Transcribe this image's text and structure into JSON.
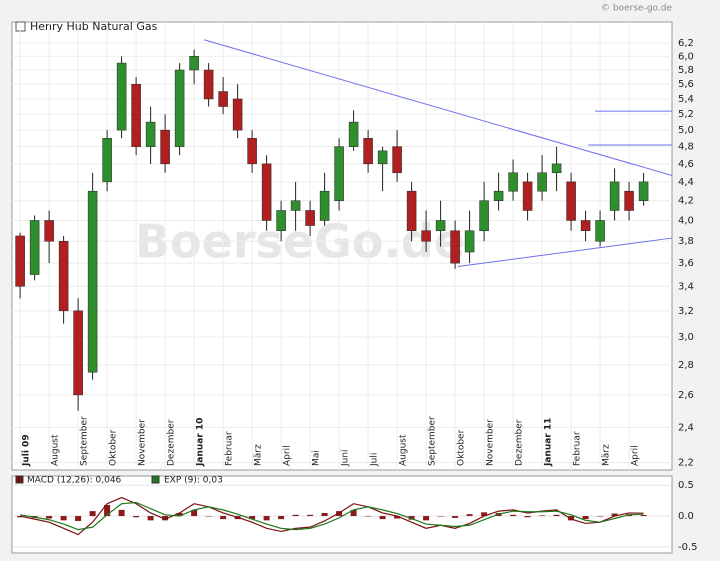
{
  "copyright": "© boerse-go.de",
  "watermark": "BoerseGo.de",
  "chart_data": [
    {
      "type": "candlestick",
      "log": true,
      "grid": true,
      "ylim": [
        2.16,
        6.53
      ],
      "yticks": [
        {
          "value": 2.2,
          "label": "2,2"
        },
        {
          "value": 2.4,
          "label": "2,4"
        },
        {
          "value": 2.6,
          "label": "2,6"
        },
        {
          "value": 2.8,
          "label": "2,8"
        },
        {
          "value": 3.0,
          "label": "3,0"
        },
        {
          "value": 3.2,
          "label": "3,2"
        },
        {
          "value": 3.4,
          "label": "3,4"
        },
        {
          "value": 3.6,
          "label": "3,6"
        },
        {
          "value": 3.8,
          "label": "3,8"
        },
        {
          "value": 4.0,
          "label": "4,0"
        },
        {
          "value": 4.2,
          "label": "4,2"
        },
        {
          "value": 4.4,
          "label": "4,4"
        },
        {
          "value": 4.6,
          "label": "4,6"
        },
        {
          "value": 4.8,
          "label": "4,8"
        },
        {
          "value": 5.0,
          "label": "5,0"
        },
        {
          "value": 5.2,
          "label": "5,2"
        },
        {
          "value": 5.4,
          "label": "5,4"
        },
        {
          "value": 5.6,
          "label": "5,6"
        },
        {
          "value": 5.8,
          "label": "5,8"
        },
        {
          "value": 6.0,
          "label": "6,0"
        },
        {
          "value": 6.2,
          "label": "6,2"
        }
      ],
      "xlim": [
        -0.28,
        22.48
      ],
      "xticks": [
        {
          "value": 0,
          "label": "Juli 09"
        },
        {
          "value": 1,
          "label": "August"
        },
        {
          "value": 2,
          "label": "September"
        },
        {
          "value": 3,
          "label": "Oktober"
        },
        {
          "value": 4,
          "label": "November"
        },
        {
          "value": 5,
          "label": "Dezember"
        },
        {
          "value": 6,
          "label": "Januar 10"
        },
        {
          "value": 7,
          "label": "Februar"
        },
        {
          "value": 8,
          "label": "März"
        },
        {
          "value": 9,
          "label": "April"
        },
        {
          "value": 10,
          "label": "Mai"
        },
        {
          "value": 11,
          "label": "Juni"
        },
        {
          "value": 12,
          "label": "Juli"
        },
        {
          "value": 13,
          "label": "August"
        },
        {
          "value": 14,
          "label": "September"
        },
        {
          "value": 15,
          "label": "Oktober"
        },
        {
          "value": 16,
          "label": "November"
        },
        {
          "value": 17,
          "label": "Dezember"
        },
        {
          "value": 18,
          "label": "Januar 11"
        },
        {
          "value": 19,
          "label": "Februar"
        },
        {
          "value": 20,
          "label": "März"
        },
        {
          "value": 21,
          "label": "April"
        }
      ],
      "series": [
        {
          "name": "Henry Hub Natural Gas",
          "up_color": "#2f8f2f",
          "down_color": "#b02020",
          "x": [
            0,
            0.5,
            1,
            1.5,
            2,
            2.5,
            3,
            3.5,
            4,
            4.5,
            5,
            5.5,
            6,
            6.5,
            7,
            7.5,
            8,
            8.5,
            9,
            9.5,
            10,
            10.5,
            11,
            11.5,
            12,
            12.5,
            13,
            13.5,
            14,
            14.5,
            15,
            15.5,
            16,
            16.5,
            17,
            17.5,
            18,
            18.5,
            19,
            19.5,
            20,
            20.5,
            21,
            21.5
          ],
          "open": [
            3.85,
            3.5,
            4.0,
            3.8,
            3.2,
            2.75,
            4.4,
            5.0,
            5.6,
            4.8,
            5.0,
            4.8,
            5.8,
            5.8,
            5.5,
            5.4,
            4.9,
            4.6,
            3.9,
            4.1,
            4.1,
            4.0,
            4.2,
            4.8,
            4.9,
            4.6,
            4.8,
            4.3,
            3.9,
            3.9,
            3.9,
            3.7,
            3.9,
            4.2,
            4.3,
            4.4,
            4.3,
            4.5,
            4.4,
            4.0,
            3.8,
            4.1,
            4.3,
            4.2
          ],
          "high": [
            3.88,
            4.05,
            4.1,
            3.85,
            3.3,
            4.5,
            5.0,
            6.0,
            5.7,
            5.3,
            5.2,
            5.9,
            6.1,
            5.9,
            5.7,
            5.6,
            5.0,
            4.7,
            4.2,
            4.4,
            4.2,
            4.5,
            4.9,
            5.25,
            5.0,
            4.8,
            5.0,
            4.4,
            4.1,
            4.2,
            4.0,
            4.1,
            4.4,
            4.5,
            4.65,
            4.5,
            4.7,
            4.8,
            4.5,
            4.1,
            4.1,
            4.55,
            4.4,
            4.5
          ],
          "low": [
            3.3,
            3.45,
            3.6,
            3.1,
            2.5,
            2.7,
            4.3,
            4.9,
            4.7,
            4.6,
            4.5,
            4.7,
            5.6,
            5.3,
            5.2,
            4.9,
            4.5,
            3.9,
            3.8,
            3.9,
            3.85,
            3.95,
            4.1,
            4.75,
            4.5,
            4.3,
            4.4,
            3.8,
            3.7,
            3.75,
            3.55,
            3.6,
            3.8,
            4.1,
            4.2,
            4.0,
            4.2,
            4.3,
            3.9,
            3.8,
            3.75,
            4.0,
            4.0,
            4.15
          ],
          "close": [
            3.4,
            4.0,
            3.8,
            3.2,
            2.6,
            4.3,
            4.9,
            5.9,
            4.8,
            5.1,
            4.6,
            5.8,
            6.0,
            5.4,
            5.3,
            5.0,
            4.6,
            4.0,
            4.1,
            4.2,
            3.95,
            4.3,
            4.8,
            5.1,
            4.6,
            4.75,
            4.5,
            3.9,
            3.8,
            4.0,
            3.6,
            3.9,
            4.2,
            4.3,
            4.5,
            4.1,
            4.5,
            4.6,
            4.0,
            3.9,
            4.0,
            4.4,
            4.1,
            4.4
          ]
        }
      ],
      "trendlines": [
        {
          "color": "#6f6ff0",
          "x": [
            6.34,
            22.48
          ],
          "y": [
            6.25,
            4.47
          ]
        },
        {
          "color": "#6f6ff0",
          "x": [
            15.1,
            22.48
          ],
          "y": [
            3.57,
            3.83
          ]
        },
        {
          "color": "#6f6ff0",
          "x": [
            19.83,
            22.48
          ],
          "y": [
            5.24,
            5.24
          ]
        },
        {
          "color": "#6f6ff0",
          "x": [
            19.59,
            22.48
          ],
          "y": [
            4.82,
            4.82
          ]
        }
      ]
    },
    {
      "type": "macd",
      "ylim": [
        -0.6,
        0.65
      ],
      "yticks": [
        0.5,
        {
          "value": 0,
          "label": "0.0"
        },
        -0.5
      ],
      "xlim": [
        -0.28,
        22.48
      ],
      "x": [
        0,
        0.5,
        1,
        1.5,
        2,
        2.5,
        3,
        3.5,
        4,
        4.5,
        5,
        5.5,
        6,
        6.5,
        7,
        7.5,
        8,
        8.5,
        9,
        9.5,
        10,
        10.5,
        11,
        11.5,
        12,
        12.5,
        13,
        13.5,
        14,
        14.5,
        15,
        15.5,
        16,
        16.5,
        17,
        17.5,
        18,
        18.5,
        19,
        19.5,
        20,
        20.5,
        21,
        21.5
      ],
      "series": [
        {
          "name": "MACD (12,26): 0,046",
          "color": "#7a1010",
          "values": [
            0.0,
            -0.05,
            -0.1,
            -0.2,
            -0.3,
            -0.1,
            0.2,
            0.3,
            0.2,
            0.05,
            -0.05,
            0.05,
            0.2,
            0.15,
            0.05,
            -0.02,
            -0.1,
            -0.2,
            -0.25,
            -0.2,
            -0.18,
            -0.08,
            0.05,
            0.2,
            0.15,
            0.05,
            0.0,
            -0.1,
            -0.2,
            -0.15,
            -0.2,
            -0.12,
            0.0,
            0.08,
            0.1,
            0.05,
            0.08,
            0.1,
            -0.05,
            -0.12,
            -0.1,
            0.0,
            0.05,
            0.046
          ]
        },
        {
          "name": "EXP (9): 0,03",
          "color": "#1f7a1f",
          "values": [
            0.02,
            -0.02,
            -0.06,
            -0.13,
            -0.22,
            -0.18,
            0.02,
            0.2,
            0.22,
            0.12,
            0.02,
            0.0,
            0.1,
            0.15,
            0.1,
            0.03,
            -0.05,
            -0.13,
            -0.2,
            -0.22,
            -0.2,
            -0.13,
            -0.03,
            0.1,
            0.15,
            0.1,
            0.04,
            -0.04,
            -0.13,
            -0.15,
            -0.17,
            -0.15,
            -0.06,
            0.03,
            0.08,
            0.07,
            0.07,
            0.08,
            0.02,
            -0.07,
            -0.1,
            -0.04,
            0.02,
            0.03
          ]
        },
        {
          "type": "bar",
          "color": "#8a1a1a",
          "values": [
            -0.02,
            -0.03,
            -0.04,
            -0.07,
            -0.08,
            0.08,
            0.18,
            0.1,
            -0.02,
            -0.07,
            -0.07,
            0.05,
            0.1,
            0.0,
            -0.05,
            -0.05,
            -0.05,
            -0.07,
            -0.05,
            0.02,
            0.02,
            0.05,
            0.08,
            0.1,
            0.0,
            -0.05,
            -0.04,
            -0.06,
            -0.07,
            0.0,
            -0.03,
            0.03,
            0.06,
            0.05,
            0.02,
            -0.02,
            0.01,
            0.02,
            -0.07,
            -0.05,
            0.0,
            0.04,
            0.03,
            0.016
          ]
        }
      ]
    }
  ]
}
